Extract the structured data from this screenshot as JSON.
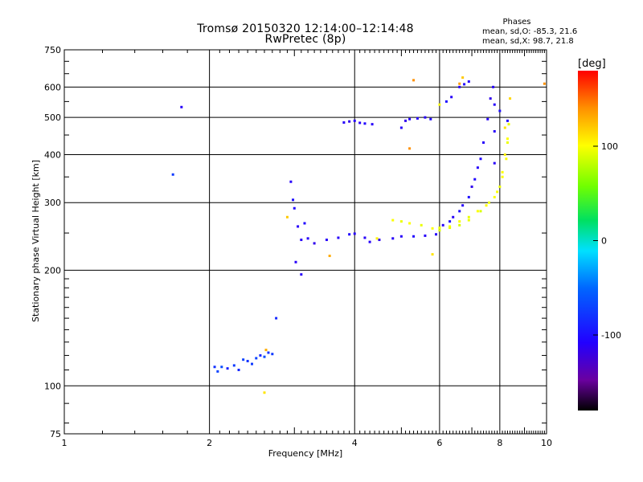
{
  "chart_data": {
    "type": "scatter",
    "title": "Tromsø 20150320 12:14:00–12:14:48",
    "subtitle": "RwPretec (8p)",
    "xlabel": "Frequency [MHz]",
    "ylabel": "Stationary phase Virtual Height [km]",
    "xscale": "log",
    "yscale": "log",
    "xlim": [
      1,
      10
    ],
    "ylim": [
      75,
      750
    ],
    "xticks": [
      1,
      2,
      4,
      6,
      8,
      10
    ],
    "yticks": [
      75,
      100,
      200,
      300,
      400,
      500,
      600,
      750
    ],
    "grid": true,
    "colorbar": {
      "label": "[deg]",
      "ticks": [
        100,
        0,
        -100
      ],
      "range": [
        -180,
        180
      ]
    },
    "phase_stats": {
      "title": "Phases",
      "line1": "mean, sd,O: -85.3, 21.6",
      "line2": "mean, sd,X:  98.7, 21.8"
    },
    "series": [
      {
        "mode": "O",
        "points": [
          [
            1.75,
            532,
            -110
          ],
          [
            1.68,
            355,
            -75
          ],
          [
            2.05,
            112,
            -80
          ],
          [
            2.08,
            109,
            -70
          ],
          [
            2.12,
            112,
            -65
          ],
          [
            2.18,
            111,
            -90
          ],
          [
            2.25,
            113,
            -75
          ],
          [
            2.3,
            110,
            -85
          ],
          [
            2.35,
            117,
            -70
          ],
          [
            2.4,
            116,
            -80
          ],
          [
            2.45,
            114,
            -75
          ],
          [
            2.5,
            118,
            -70
          ],
          [
            2.55,
            120,
            -85
          ],
          [
            2.6,
            119,
            -65
          ],
          [
            2.65,
            122,
            -80
          ],
          [
            2.7,
            121,
            -75
          ],
          [
            2.75,
            150,
            -85
          ],
          [
            2.95,
            340,
            -110
          ],
          [
            2.98,
            305,
            -100
          ],
          [
            3.0,
            290,
            -105
          ],
          [
            3.05,
            260,
            -110
          ],
          [
            3.1,
            240,
            -110
          ],
          [
            3.15,
            265,
            -105
          ],
          [
            3.2,
            242,
            -110
          ],
          [
            3.3,
            235,
            -115
          ],
          [
            3.5,
            240,
            -110
          ],
          [
            3.7,
            243,
            -110
          ],
          [
            3.9,
            248,
            -105
          ],
          [
            4.0,
            249,
            -110
          ],
          [
            4.2,
            243,
            -110
          ],
          [
            4.5,
            240,
            -115
          ],
          [
            4.8,
            242,
            -110
          ],
          [
            5.0,
            245,
            -110
          ],
          [
            5.3,
            245,
            -105
          ],
          [
            5.6,
            246,
            -110
          ],
          [
            5.9,
            248,
            -110
          ],
          [
            6.1,
            262,
            -110
          ],
          [
            6.4,
            275,
            -110
          ],
          [
            6.7,
            295,
            -110
          ],
          [
            7.0,
            330,
            -115
          ],
          [
            7.2,
            370,
            -110
          ],
          [
            7.4,
            430,
            -110
          ],
          [
            7.55,
            495,
            -110
          ],
          [
            7.65,
            560,
            -115
          ],
          [
            7.75,
            600,
            -110
          ],
          [
            6.3,
            268,
            -100
          ],
          [
            6.6,
            285,
            -100
          ],
          [
            6.9,
            310,
            -100
          ],
          [
            7.1,
            345,
            -105
          ],
          [
            7.3,
            390,
            -105
          ],
          [
            3.8,
            485,
            -110
          ],
          [
            3.9,
            488,
            -115
          ],
          [
            4.0,
            490,
            -110
          ],
          [
            4.1,
            484,
            -110
          ],
          [
            4.2,
            482,
            -105
          ],
          [
            4.35,
            480,
            -110
          ],
          [
            5.0,
            470,
            -110
          ],
          [
            5.1,
            490,
            -115
          ],
          [
            5.2,
            495,
            -110
          ],
          [
            5.4,
            497,
            -110
          ],
          [
            5.6,
            500,
            -110
          ],
          [
            5.75,
            495,
            -105
          ],
          [
            6.2,
            550,
            -100
          ],
          [
            6.35,
            565,
            -110
          ],
          [
            6.6,
            600,
            -110
          ],
          [
            6.75,
            610,
            -105
          ],
          [
            6.9,
            620,
            -110
          ],
          [
            7.8,
            380,
            -110
          ],
          [
            7.8,
            460,
            -110
          ],
          [
            7.8,
            540,
            -110
          ],
          [
            8.0,
            520,
            -100
          ],
          [
            8.3,
            490,
            -105
          ],
          [
            3.1,
            195,
            -110
          ],
          [
            3.02,
            210,
            -110
          ],
          [
            4.3,
            237,
            -110
          ]
        ]
      },
      {
        "mode": "X",
        "points": [
          [
            2.6,
            96,
            110
          ],
          [
            2.62,
            124,
            130
          ],
          [
            2.9,
            275,
            120
          ],
          [
            4.45,
            242,
            105
          ],
          [
            4.8,
            270,
            100
          ],
          [
            5.0,
            268,
            95
          ],
          [
            5.2,
            265,
            100
          ],
          [
            5.5,
            262,
            95
          ],
          [
            5.8,
            257,
            100
          ],
          [
            6.0,
            258,
            95
          ],
          [
            6.3,
            260,
            100
          ],
          [
            6.6,
            268,
            100
          ],
          [
            6.9,
            275,
            95
          ],
          [
            7.2,
            285,
            100
          ],
          [
            7.5,
            295,
            100
          ],
          [
            7.8,
            310,
            100
          ],
          [
            8.0,
            330,
            95
          ],
          [
            8.1,
            360,
            100
          ],
          [
            8.2,
            400,
            105
          ],
          [
            8.3,
            440,
            100
          ],
          [
            8.35,
            480,
            95
          ],
          [
            6.0,
            254,
            90
          ],
          [
            6.3,
            258,
            95
          ],
          [
            6.6,
            262,
            90
          ],
          [
            6.9,
            270,
            95
          ],
          [
            7.3,
            285,
            90
          ],
          [
            7.6,
            300,
            95
          ],
          [
            7.9,
            320,
            100
          ],
          [
            8.1,
            350,
            100
          ],
          [
            8.25,
            390,
            100
          ],
          [
            8.3,
            430,
            95
          ],
          [
            5.3,
            625,
            140
          ],
          [
            5.2,
            415,
            140
          ],
          [
            3.55,
            218,
            130
          ],
          [
            6.6,
            612,
            135
          ],
          [
            6.7,
            635,
            120
          ],
          [
            9.9,
            612,
            140
          ],
          [
            6.0,
            540,
            100
          ],
          [
            5.8,
            220,
            110
          ],
          [
            8.2,
            470,
            110
          ],
          [
            8.4,
            560,
            115
          ]
        ]
      }
    ]
  }
}
